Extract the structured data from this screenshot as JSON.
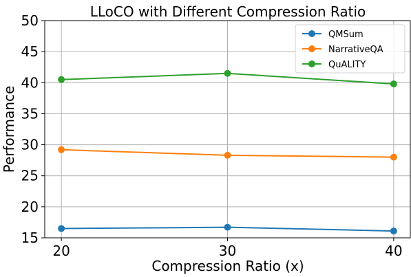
{
  "chart_data": {
    "type": "line",
    "title": "LLoCO with Different Compression Ratio",
    "xlabel": "Compression Ratio (x)",
    "ylabel": "Performance",
    "x": [
      20,
      30,
      40
    ],
    "xlim": [
      19,
      41
    ],
    "ylim": [
      15,
      50
    ],
    "xticks": [
      20,
      30,
      40
    ],
    "yticks": [
      15,
      20,
      25,
      30,
      35,
      40,
      45,
      50
    ],
    "grid": true,
    "legend_position": "top-right",
    "series": [
      {
        "name": "QMSum",
        "color": "#1f77b4",
        "values": [
          16.5,
          16.7,
          16.1
        ]
      },
      {
        "name": "NarrativeQA",
        "color": "#ff7f0e",
        "values": [
          29.2,
          28.3,
          28.0
        ]
      },
      {
        "name": "QuALITY",
        "color": "#2ca02c",
        "values": [
          40.5,
          41.5,
          39.8
        ]
      }
    ]
  }
}
